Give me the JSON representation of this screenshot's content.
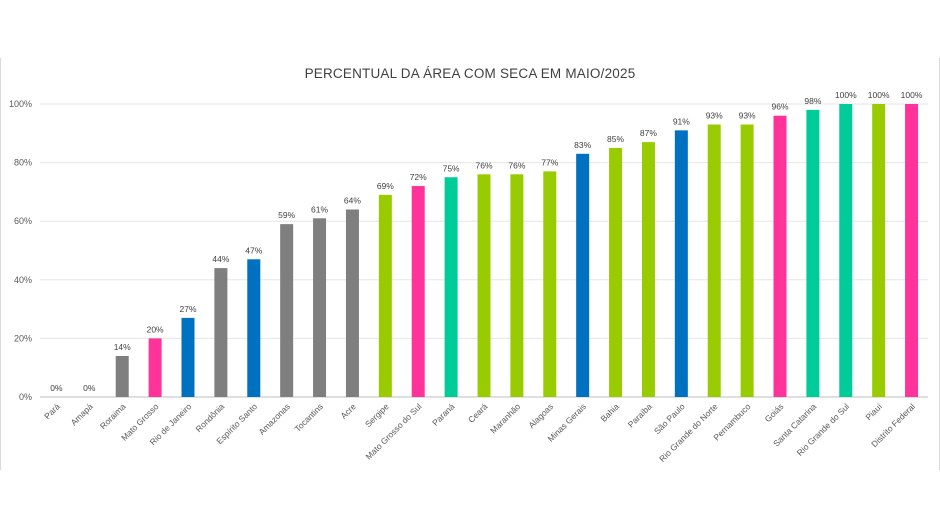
{
  "chart_data": {
    "type": "bar",
    "title": "PERCENTUAL DA ÁREA COM SECA EM MAIO/2025",
    "xlabel": "",
    "ylabel": "",
    "ylim": [
      0,
      100
    ],
    "yticks": [
      "0%",
      "20%",
      "40%",
      "60%",
      "80%",
      "100%"
    ],
    "grid": true,
    "legend": "none",
    "categories": [
      "Pará",
      "Amapá",
      "Roraima",
      "Mato Grosso",
      "Rio de Janeiro",
      "Rondônia",
      "Espírito Santo",
      "Amazonas",
      "Tocantins",
      "Acre",
      "Sergipe",
      "Mato Grosso do Sul",
      "Paraná",
      "Ceará",
      "Maranhão",
      "Alagoas",
      "Minas Gerais",
      "Bahia",
      "Paraíba",
      "São Paulo",
      "Rio Grande do Norte",
      "Pernambuco",
      "Goiás",
      "Santa Catarina",
      "Rio Grande do Sul",
      "Piauí",
      "Distrito Federal"
    ],
    "values": [
      0,
      0,
      14,
      20,
      27,
      44,
      47,
      59,
      61,
      64,
      69,
      72,
      75,
      76,
      76,
      77,
      83,
      85,
      87,
      91,
      93,
      93,
      96,
      98,
      100,
      100,
      100
    ],
    "value_labels": [
      "0%",
      "0%",
      "14%",
      "20%",
      "27%",
      "44%",
      "47%",
      "59%",
      "61%",
      "64%",
      "69%",
      "72%",
      "75%",
      "76%",
      "76%",
      "77%",
      "83%",
      "85%",
      "87%",
      "91%",
      "93%",
      "93%",
      "96%",
      "98%",
      "100%",
      "100%",
      "100%"
    ],
    "bar_colors": [
      "#7f7f7f",
      "#7f7f7f",
      "#7f7f7f",
      "#ff3399",
      "#0070c0",
      "#7f7f7f",
      "#0070c0",
      "#7f7f7f",
      "#7f7f7f",
      "#7f7f7f",
      "#99cc00",
      "#ff3399",
      "#00cc99",
      "#99cc00",
      "#99cc00",
      "#99cc00",
      "#0070c0",
      "#99cc00",
      "#99cc00",
      "#0070c0",
      "#99cc00",
      "#99cc00",
      "#ff3399",
      "#00cc99",
      "#00cc99",
      "#99cc00",
      "#ff3399"
    ]
  }
}
